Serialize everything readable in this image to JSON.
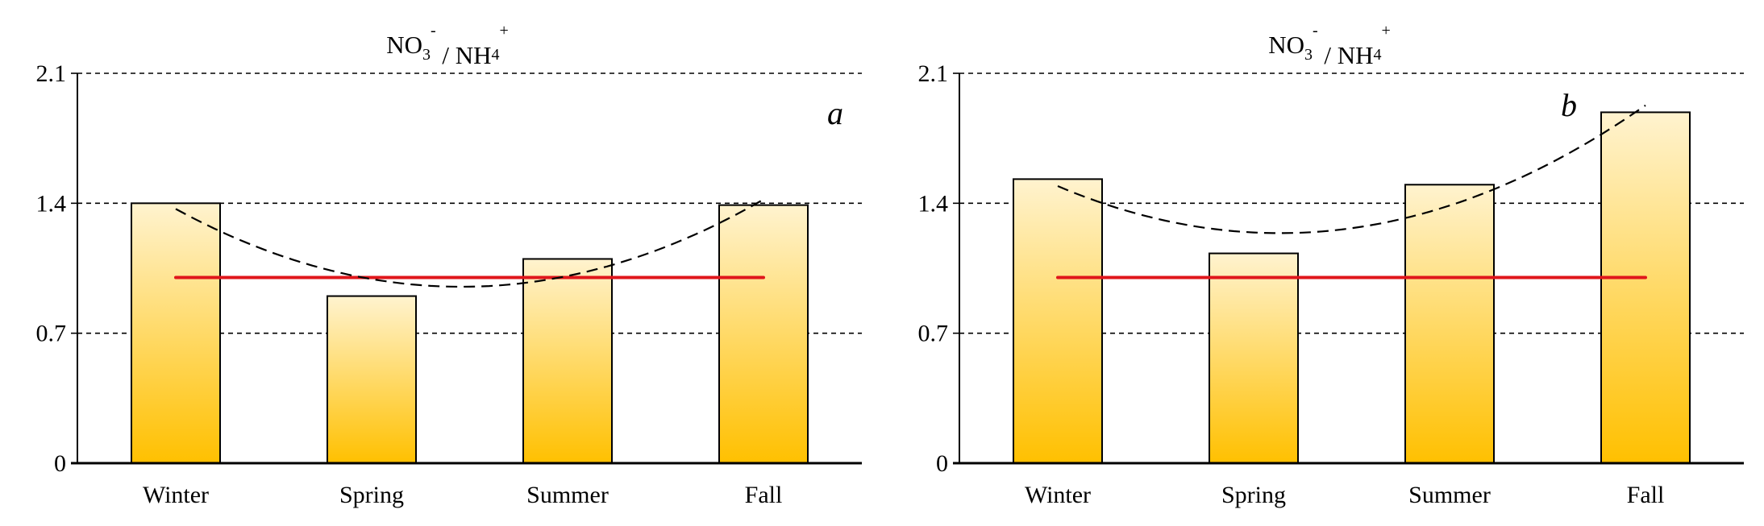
{
  "chart_data": [
    {
      "type": "bar",
      "title": "NO3- / NH4+",
      "title_parts": {
        "a": "NO",
        "sub1": "3",
        "sup1": "-",
        "b": " / NH",
        "sub2": "4",
        "sup2": "+"
      },
      "panel_label": "a",
      "categories": [
        "Winter",
        "Spring",
        "Summer",
        "Fall"
      ],
      "values": [
        1.4,
        0.9,
        1.1,
        1.39
      ],
      "ylim": [
        0,
        2.1
      ],
      "yticks": [
        "0",
        "0.7",
        "1.4",
        "2.1"
      ],
      "reference_line": 1.0,
      "trendline": "polynomial-2 (dashed)",
      "grid": "horizontal dashed",
      "colors": {
        "bar_top": "#fff3cf",
        "bar_bottom": "#ffc000",
        "reference": "#e0161b",
        "trend": "#000000"
      }
    },
    {
      "type": "bar",
      "title": "NO3- / NH4+",
      "title_parts": {
        "a": "NO",
        "sub1": "3",
        "sup1": "-",
        "b": " / NH",
        "sub2": "4",
        "sup2": "+"
      },
      "panel_label": "b",
      "categories": [
        "Winter",
        "Spring",
        "Summer",
        "Fall"
      ],
      "values": [
        1.53,
        1.13,
        1.5,
        1.89
      ],
      "ylim": [
        0,
        2.1
      ],
      "yticks": [
        "0",
        "0.7",
        "1.4",
        "2.1"
      ],
      "reference_line": 1.0,
      "trendline": "polynomial-2 (dashed)",
      "grid": "horizontal dashed",
      "colors": {
        "bar_top": "#fff3cf",
        "bar_bottom": "#ffc000",
        "reference": "#e0161b",
        "trend": "#000000"
      }
    }
  ]
}
